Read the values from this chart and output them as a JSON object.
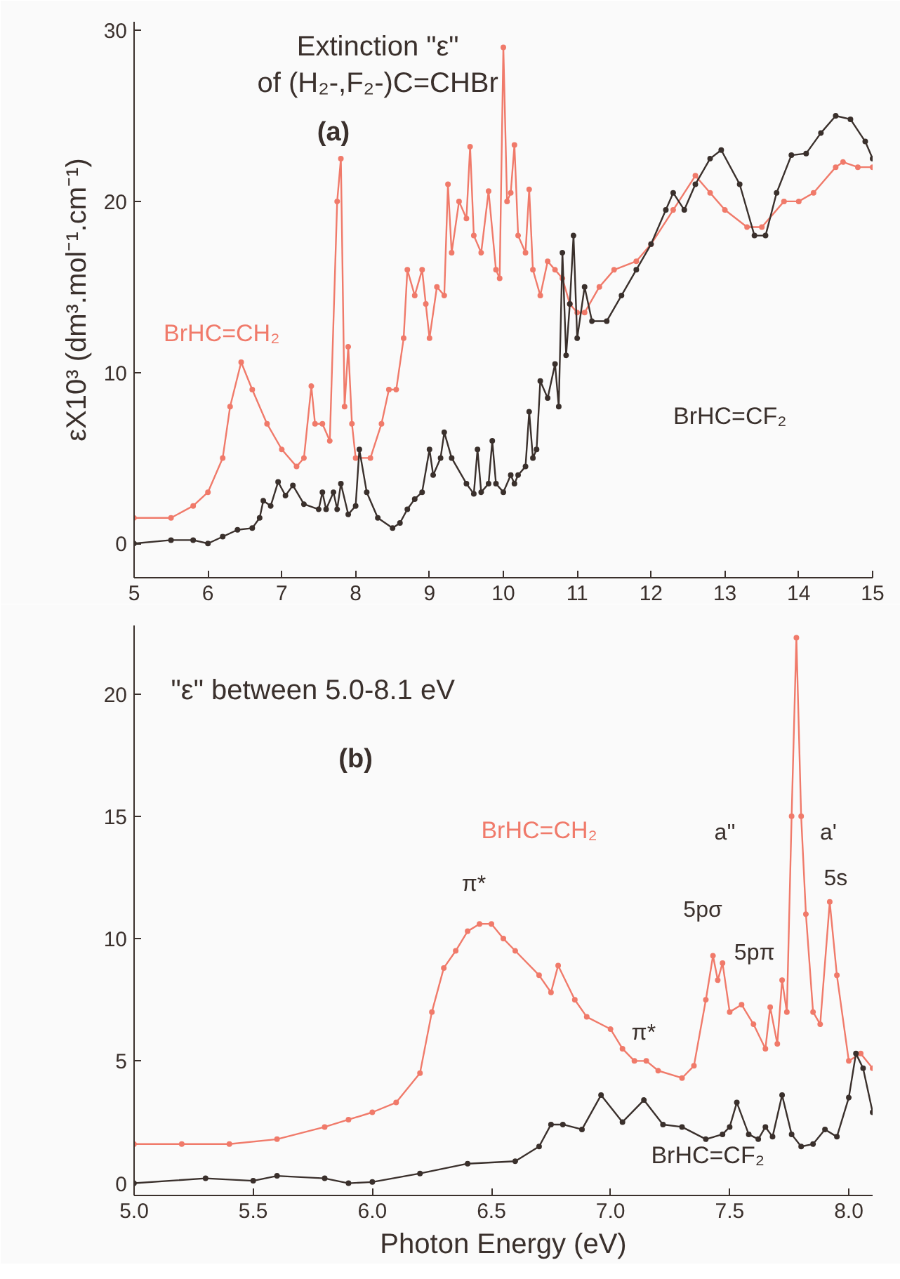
{
  "chart_data": [
    {
      "type": "line",
      "title": "Extinction \"ε\"\nof (H₂-,F₂-)C=CHBr",
      "ylabel": "εX10³ (dm³.mol⁻¹.cm⁻¹)",
      "marker": "circle",
      "grid": false,
      "xlim": [
        5,
        15
      ],
      "xticks": [
        5,
        6,
        7,
        8,
        9,
        10,
        11,
        12,
        13,
        14,
        15
      ],
      "ylim": [
        -2,
        30.5
      ],
      "yticks": [
        0,
        10,
        20,
        30
      ],
      "annotations": [
        "(a)"
      ],
      "series": [
        {
          "name": "BrHC=CH₂",
          "color": "#f07a6a",
          "x": [
            5.0,
            5.5,
            5.8,
            6.0,
            6.2,
            6.3,
            6.45,
            6.6,
            6.8,
            7.0,
            7.2,
            7.3,
            7.4,
            7.45,
            7.55,
            7.65,
            7.75,
            7.8,
            7.85,
            7.9,
            7.95,
            8.0,
            8.2,
            8.35,
            8.45,
            8.55,
            8.65,
            8.7,
            8.8,
            8.9,
            8.95,
            9.0,
            9.1,
            9.2,
            9.25,
            9.3,
            9.4,
            9.5,
            9.55,
            9.6,
            9.7,
            9.8,
            9.9,
            9.95,
            10.0,
            10.05,
            10.1,
            10.15,
            10.2,
            10.3,
            10.35,
            10.4,
            10.5,
            10.6,
            10.7,
            10.8,
            10.9,
            11.0,
            11.1,
            11.3,
            11.5,
            11.8,
            12.0,
            12.3,
            12.6,
            12.8,
            13.0,
            13.3,
            13.5,
            13.8,
            14.0,
            14.2,
            14.5,
            14.6,
            14.8,
            15.0
          ],
          "values": [
            1.5,
            1.5,
            2.2,
            3.0,
            5,
            8,
            10.6,
            9,
            7,
            5.5,
            4.5,
            5,
            9.2,
            7,
            7,
            6,
            20,
            22.5,
            8,
            11.5,
            7,
            5,
            5,
            7,
            9,
            9,
            12,
            16,
            14.5,
            16,
            14,
            12,
            15,
            14.5,
            21,
            17,
            20,
            19,
            23.2,
            18,
            17,
            20.6,
            16,
            15.5,
            29,
            20,
            20.5,
            23.3,
            18,
            17,
            20.7,
            16,
            14.5,
            16.5,
            16,
            15.5,
            14,
            13.5,
            13.5,
            15,
            16,
            16.5,
            17.5,
            19.5,
            21.5,
            20.5,
            19.5,
            18.5,
            18.5,
            20,
            20,
            20.5,
            22,
            22.3,
            22,
            22
          ]
        },
        {
          "name": "BrHC=CF₂",
          "color": "#3a302c",
          "x": [
            5.0,
            5.5,
            5.8,
            6.0,
            6.2,
            6.4,
            6.6,
            6.7,
            6.75,
            6.85,
            6.95,
            7.05,
            7.15,
            7.3,
            7.5,
            7.55,
            7.6,
            7.7,
            7.75,
            7.8,
            7.9,
            8.0,
            8.05,
            8.15,
            8.3,
            8.5,
            8.6,
            8.7,
            8.8,
            8.9,
            9.0,
            9.05,
            9.15,
            9.2,
            9.3,
            9.5,
            9.6,
            9.65,
            9.7,
            9.8,
            9.85,
            9.9,
            10.0,
            10.1,
            10.15,
            10.2,
            10.3,
            10.35,
            10.4,
            10.45,
            10.5,
            10.6,
            10.7,
            10.75,
            10.8,
            10.85,
            10.9,
            10.95,
            11.0,
            11.1,
            11.2,
            11.4,
            11.6,
            11.8,
            12.0,
            12.2,
            12.3,
            12.45,
            12.6,
            12.8,
            12.95,
            13.2,
            13.4,
            13.55,
            13.7,
            13.9,
            14.1,
            14.3,
            14.5,
            14.7,
            14.9,
            15.0
          ],
          "values": [
            0,
            0.2,
            0.2,
            0,
            0.4,
            0.8,
            0.9,
            1.5,
            2.5,
            2.2,
            3.6,
            2.8,
            3.4,
            2.3,
            2,
            3,
            2,
            3,
            2,
            3.5,
            1.7,
            2.2,
            5.5,
            3,
            1.5,
            0.9,
            1.2,
            2,
            2.6,
            3,
            5.5,
            4,
            5,
            6.5,
            5,
            3.5,
            2.9,
            5.5,
            3,
            3.5,
            6,
            3.5,
            3,
            4,
            3.5,
            4,
            4.5,
            7.7,
            5,
            5.5,
            9.5,
            8.5,
            10.5,
            8,
            17,
            11,
            14,
            18,
            12,
            15,
            13,
            13,
            14.5,
            16,
            17.5,
            19.5,
            20.5,
            19.5,
            21,
            22.5,
            23,
            21,
            18,
            18,
            20.5,
            22.7,
            22.8,
            24,
            25,
            24.8,
            23.5,
            22.5
          ]
        }
      ]
    },
    {
      "type": "line",
      "title": "\"ε\" between 5.0-8.1 eV",
      "xlabel": "Photon Energy (eV)",
      "marker": "circle",
      "grid": false,
      "xlim": [
        5.0,
        8.1
      ],
      "xticks": [
        {
          "value": 5.0,
          "label": "5.0"
        },
        {
          "value": 5.5,
          "label": "5.5"
        },
        {
          "value": 6.0,
          "label": "6.0"
        },
        {
          "value": 6.5,
          "label": "6.5"
        },
        {
          "value": 7.0,
          "label": "7.0"
        },
        {
          "value": 7.5,
          "label": "7.5"
        },
        {
          "value": 8.0,
          "label": "8.0"
        }
      ],
      "ylim": [
        -0.5,
        22.8
      ],
      "yticks": [
        0,
        5,
        10,
        15,
        20
      ],
      "annotations": [
        "(b)",
        "π*",
        "π*",
        "5pσ",
        "5pπ",
        "5s",
        "a''",
        "a'"
      ],
      "series": [
        {
          "name": "BrHC=CH₂",
          "color": "#f07a6a",
          "x": [
            5.0,
            5.2,
            5.4,
            5.6,
            5.8,
            5.9,
            6.0,
            6.1,
            6.2,
            6.25,
            6.3,
            6.35,
            6.4,
            6.45,
            6.5,
            6.55,
            6.6,
            6.7,
            6.75,
            6.78,
            6.85,
            6.9,
            7.0,
            7.05,
            7.1,
            7.15,
            7.2,
            7.3,
            7.35,
            7.4,
            7.43,
            7.45,
            7.47,
            7.5,
            7.55,
            7.6,
            7.65,
            7.67,
            7.7,
            7.72,
            7.74,
            7.76,
            7.78,
            7.8,
            7.82,
            7.85,
            7.88,
            7.92,
            7.95,
            8.0,
            8.05,
            8.1
          ],
          "values": [
            1.6,
            1.6,
            1.6,
            1.8,
            2.3,
            2.6,
            2.9,
            3.3,
            4.5,
            7.0,
            8.8,
            9.5,
            10.3,
            10.6,
            10.6,
            10.0,
            9.5,
            8.5,
            7.8,
            8.9,
            7.5,
            6.8,
            6.3,
            5.5,
            5.0,
            5.0,
            4.6,
            4.3,
            4.8,
            7.5,
            9.3,
            8.3,
            9.0,
            7.0,
            7.3,
            6.5,
            5.5,
            7.2,
            5.7,
            8.3,
            7.0,
            15,
            22.3,
            15,
            11,
            7,
            6.5,
            11.5,
            8.5,
            5.0,
            5.3,
            4.7
          ]
        },
        {
          "name": "BrHC=CF₂",
          "color": "#3a302c",
          "x": [
            5.0,
            5.3,
            5.5,
            5.6,
            5.8,
            5.9,
            6.0,
            6.2,
            6.4,
            6.6,
            6.7,
            6.75,
            6.8,
            6.88,
            6.96,
            7.05,
            7.14,
            7.22,
            7.3,
            7.4,
            7.47,
            7.5,
            7.53,
            7.58,
            7.62,
            7.65,
            7.68,
            7.72,
            7.76,
            7.8,
            7.85,
            7.9,
            7.95,
            8.0,
            8.03,
            8.06,
            8.1
          ],
          "values": [
            0,
            0.2,
            0.1,
            0.3,
            0.2,
            0,
            0.05,
            0.4,
            0.8,
            0.9,
            1.5,
            2.4,
            2.4,
            2.2,
            3.6,
            2.5,
            3.4,
            2.4,
            2.3,
            1.8,
            2.0,
            2.3,
            3.3,
            2.0,
            1.8,
            2.3,
            1.9,
            3.6,
            2.0,
            1.5,
            1.6,
            2.2,
            1.9,
            3.5,
            5.3,
            4.7,
            2.9
          ]
        }
      ]
    }
  ]
}
